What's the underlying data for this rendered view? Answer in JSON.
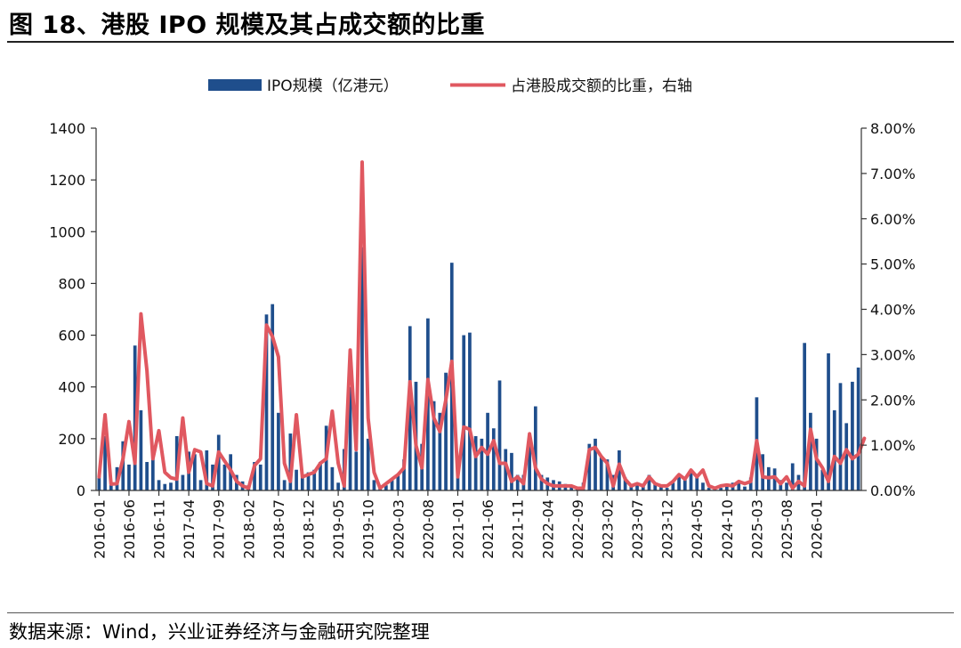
{
  "header": {
    "title": "图 18、港股 IPO 规模及其占成交额的比重"
  },
  "footer": {
    "source": "数据来源：Wind，兴业证券经济与金融研究院整理"
  },
  "colors": {
    "bar": "#1f4e8c",
    "line": "#e05860",
    "axis": "#333333"
  },
  "chart_data": {
    "type": "bar",
    "title": "图 18、港股 IPO 规模及其占成交额的比重",
    "legend_position": "top-center",
    "left_axis": {
      "ylim": [
        0,
        1400
      ],
      "ticks": [
        0,
        200,
        400,
        600,
        800,
        1000,
        1200,
        1400
      ]
    },
    "right_axis": {
      "ylim": [
        0,
        8
      ],
      "ticks": [
        "0.00%",
        "1.00%",
        "2.00%",
        "3.00%",
        "4.00%",
        "5.00%",
        "6.00%",
        "7.00%",
        "8.00%"
      ]
    },
    "x_tick_labels": [
      "2016-01",
      "2016-06",
      "2016-11",
      "2017-04",
      "2017-09",
      "2018-02",
      "2018-07",
      "2018-12",
      "2019-05",
      "2019-10",
      "2020-03",
      "2020-08",
      "2021-01",
      "2021-06",
      "2021-11",
      "2022-04",
      "2022-09",
      "2023-02",
      "2023-07",
      "2023-12",
      "2024-05",
      "2024-10",
      "2025-03",
      "2025-08",
      "2026-01"
    ],
    "series": [
      {
        "name": "IPO规模（亿港元）",
        "type": "bar",
        "axis": "left",
        "values": [
          55,
          210,
          30,
          90,
          190,
          100,
          560,
          310,
          110,
          170,
          40,
          25,
          30,
          210,
          60,
          150,
          140,
          40,
          155,
          100,
          215,
          100,
          140,
          60,
          35,
          20,
          110,
          100,
          680,
          720,
          300,
          40,
          220,
          80,
          55,
          70,
          80,
          110,
          250,
          90,
          30,
          160,
          400,
          150,
          940,
          200,
          40,
          10,
          20,
          40,
          60,
          120,
          635,
          420,
          180,
          665,
          345,
          300,
          455,
          880,
          60,
          600,
          610,
          210,
          200,
          300,
          240,
          425,
          160,
          145,
          60,
          60,
          200,
          325,
          60,
          50,
          40,
          35,
          25,
          20,
          15,
          30,
          180,
          200,
          130,
          120,
          60,
          155,
          50,
          20,
          30,
          20,
          60,
          30,
          20,
          10,
          30,
          60,
          40,
          80,
          60,
          30,
          10,
          15,
          10,
          20,
          30,
          30,
          15,
          50,
          360,
          140,
          90,
          85,
          40,
          30,
          105,
          60,
          570,
          300,
          200,
          80,
          530,
          310,
          415,
          260,
          420,
          475
        ]
      },
      {
        "name": "占港股成交额的比重，右轴",
        "type": "line",
        "axis": "right",
        "values": [
          0.3,
          1.67,
          0.14,
          0.15,
          0.7,
          1.52,
          0.6,
          3.9,
          2.65,
          0.7,
          1.32,
          0.4,
          0.28,
          0.25,
          1.6,
          0.4,
          0.9,
          0.85,
          0.15,
          0.1,
          0.85,
          0.65,
          0.45,
          0.2,
          0.1,
          0.05,
          0.55,
          0.7,
          3.65,
          3.4,
          2.95,
          0.6,
          0.2,
          1.67,
          0.3,
          0.35,
          0.4,
          0.6,
          0.7,
          1.75,
          0.6,
          0.1,
          3.1,
          0.9,
          7.25,
          1.6,
          0.4,
          0.05,
          0.15,
          0.25,
          0.35,
          0.5,
          2.4,
          1.0,
          0.5,
          2.45,
          1.6,
          1.3,
          2.0,
          2.85,
          0.3,
          1.4,
          1.35,
          0.75,
          0.95,
          0.8,
          1.1,
          0.6,
          0.6,
          0.2,
          0.3,
          0.15,
          1.25,
          0.5,
          0.25,
          0.15,
          0.1,
          0.1,
          0.1,
          0.1,
          0.05,
          0.05,
          0.9,
          0.95,
          0.75,
          0.6,
          0.1,
          0.58,
          0.25,
          0.1,
          0.15,
          0.1,
          0.3,
          0.15,
          0.1,
          0.1,
          0.2,
          0.35,
          0.25,
          0.45,
          0.3,
          0.45,
          0.1,
          0.05,
          0.1,
          0.12,
          0.1,
          0.2,
          0.15,
          0.2,
          1.1,
          0.3,
          0.28,
          0.3,
          0.15,
          0.3,
          0.05,
          0.2,
          0.1,
          1.35,
          0.7,
          0.5,
          0.2,
          0.75,
          0.6,
          0.9,
          0.7,
          0.8,
          1.15
        ]
      }
    ]
  }
}
